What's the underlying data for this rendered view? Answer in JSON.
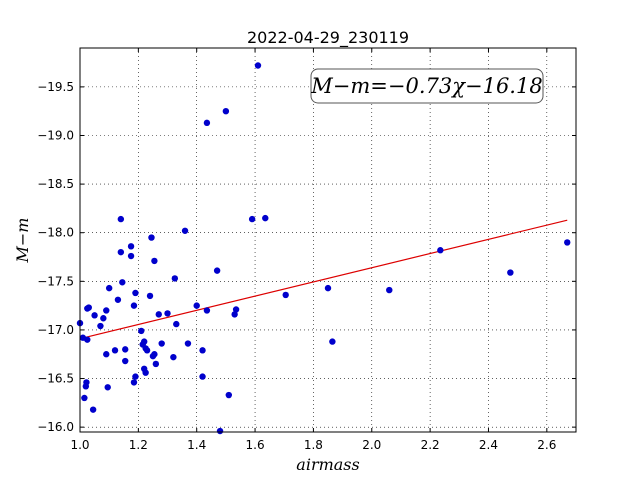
{
  "chart_data": {
    "type": "scatter",
    "title": "2022-04-29_230119",
    "xlabel": "airmass",
    "ylabel": "M−m",
    "xlim": [
      1.0,
      2.7
    ],
    "ylim": [
      -19.9,
      -15.95
    ],
    "y_inverted": true,
    "grid": true,
    "xticks": [
      1.0,
      1.2,
      1.4,
      1.6,
      1.8,
      2.0,
      2.2,
      2.4,
      2.6
    ],
    "xtick_labels": [
      "1.0",
      "1.2",
      "1.4",
      "1.6",
      "1.8",
      "2.0",
      "2.2",
      "2.4",
      "2.6"
    ],
    "yticks": [
      -16.0,
      -16.5,
      -17.0,
      -17.5,
      -18.0,
      -18.5,
      -19.0,
      -19.5
    ],
    "ytick_labels": [
      "−16.0",
      "−16.5",
      "−17.0",
      "−17.5",
      "−18.0",
      "−18.5",
      "−19.0",
      "−19.5"
    ],
    "annotation": "M−m=−0.73χ−16.18",
    "marker_color": "#0000cc",
    "fit_color": "#dd0000",
    "series": [
      {
        "points": [
          [
            1.0,
            -17.07
          ],
          [
            1.01,
            -16.92
          ],
          [
            1.015,
            -16.3
          ],
          [
            1.02,
            -16.42
          ],
          [
            1.022,
            -16.46
          ],
          [
            1.025,
            -16.9
          ],
          [
            1.025,
            -17.22
          ],
          [
            1.03,
            -17.23
          ],
          [
            1.045,
            -16.18
          ],
          [
            1.05,
            -17.15
          ],
          [
            1.07,
            -17.04
          ],
          [
            1.08,
            -17.12
          ],
          [
            1.09,
            -16.75
          ],
          [
            1.09,
            -17.2
          ],
          [
            1.095,
            -16.41
          ],
          [
            1.1,
            -17.43
          ],
          [
            1.12,
            -16.79
          ],
          [
            1.13,
            -17.31
          ],
          [
            1.14,
            -17.8
          ],
          [
            1.14,
            -18.14
          ],
          [
            1.145,
            -17.49
          ],
          [
            1.155,
            -16.8
          ],
          [
            1.155,
            -16.68
          ],
          [
            1.175,
            -17.76
          ],
          [
            1.175,
            -17.86
          ],
          [
            1.185,
            -17.25
          ],
          [
            1.19,
            -17.38
          ],
          [
            1.185,
            -16.46
          ],
          [
            1.19,
            -16.52
          ],
          [
            1.21,
            -16.99
          ],
          [
            1.215,
            -16.85
          ],
          [
            1.22,
            -16.88
          ],
          [
            1.22,
            -16.6
          ],
          [
            1.225,
            -16.56
          ],
          [
            1.225,
            -16.81
          ],
          [
            1.23,
            -16.79
          ],
          [
            1.24,
            -17.35
          ],
          [
            1.245,
            -17.95
          ],
          [
            1.25,
            -16.73
          ],
          [
            1.255,
            -16.75
          ],
          [
            1.255,
            -17.71
          ],
          [
            1.26,
            -16.65
          ],
          [
            1.27,
            -17.16
          ],
          [
            1.28,
            -16.86
          ],
          [
            1.3,
            -17.17
          ],
          [
            1.32,
            -16.72
          ],
          [
            1.325,
            -17.53
          ],
          [
            1.33,
            -17.06
          ],
          [
            1.36,
            -18.02
          ],
          [
            1.37,
            -16.86
          ],
          [
            1.4,
            -17.25
          ],
          [
            1.42,
            -16.52
          ],
          [
            1.42,
            -16.79
          ],
          [
            1.435,
            -17.2
          ],
          [
            1.435,
            -19.13
          ],
          [
            1.47,
            -17.61
          ],
          [
            1.48,
            -15.96
          ],
          [
            1.5,
            -19.25
          ],
          [
            1.51,
            -16.33
          ],
          [
            1.53,
            -17.16
          ],
          [
            1.535,
            -17.21
          ],
          [
            1.59,
            -18.14
          ],
          [
            1.61,
            -19.72
          ],
          [
            1.635,
            -18.15
          ],
          [
            1.705,
            -17.36
          ],
          [
            1.85,
            -17.43
          ],
          [
            1.865,
            -16.88
          ],
          [
            2.06,
            -17.41
          ],
          [
            2.235,
            -17.82
          ],
          [
            2.475,
            -17.59
          ],
          [
            2.67,
            -17.9
          ]
        ]
      }
    ],
    "fit": {
      "slope": -0.73,
      "intercept": -16.18
    }
  }
}
